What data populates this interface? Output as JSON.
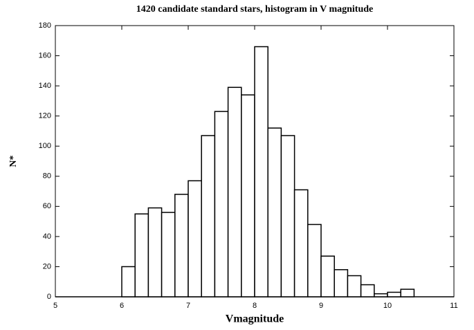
{
  "chart_data": {
    "type": "histogram",
    "title": "1420 candidate standard stars,  histogram in V magnitude",
    "xlabel": "Vmagnitude",
    "ylabel": "N*",
    "bins": [
      6.0,
      6.2,
      6.4,
      6.6,
      6.8,
      7.0,
      7.2,
      7.4,
      7.6,
      7.8,
      8.0,
      8.2,
      8.4,
      8.6,
      8.8,
      9.0,
      9.2,
      9.4,
      9.6,
      9.8,
      10.0,
      10.2,
      10.4
    ],
    "values": [
      20,
      55,
      59,
      56,
      68,
      77,
      107,
      123,
      139,
      134,
      166,
      112,
      107,
      71,
      48,
      27,
      18,
      14,
      8,
      2,
      3,
      5
    ],
    "color": "#ffffff",
    "xlim": [
      5,
      11
    ],
    "ylim": [
      0,
      180
    ],
    "xticks": [
      5,
      6,
      7,
      8,
      9,
      10,
      11
    ],
    "yticks": [
      0,
      20,
      40,
      60,
      80,
      100,
      120,
      140,
      160,
      180
    ]
  }
}
